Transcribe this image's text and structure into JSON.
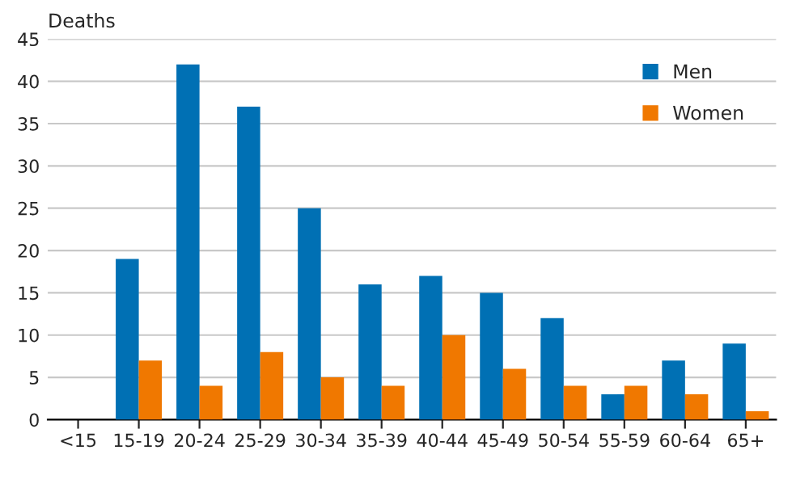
{
  "chart_data": {
    "type": "bar",
    "ylabel": "Deaths",
    "categories": [
      "<15",
      "15-19",
      "20-24",
      "25-29",
      "30-34",
      "35-39",
      "40-44",
      "45-49",
      "50-54",
      "55-59",
      "60-64",
      "65+"
    ],
    "series": [
      {
        "name": "Men",
        "color": "#0070b4",
        "values": [
          null,
          19,
          42,
          37,
          25,
          16,
          17,
          15,
          12,
          3,
          7,
          9
        ]
      },
      {
        "name": "Women",
        "color": "#f07800",
        "values": [
          null,
          7,
          4,
          8,
          5,
          4,
          10,
          6,
          4,
          4,
          3,
          1
        ]
      }
    ],
    "ylim": [
      0,
      45
    ],
    "yticks": [
      0,
      5,
      10,
      15,
      20,
      25,
      30,
      35,
      40,
      45
    ],
    "grid": "y",
    "legend": "top right"
  }
}
